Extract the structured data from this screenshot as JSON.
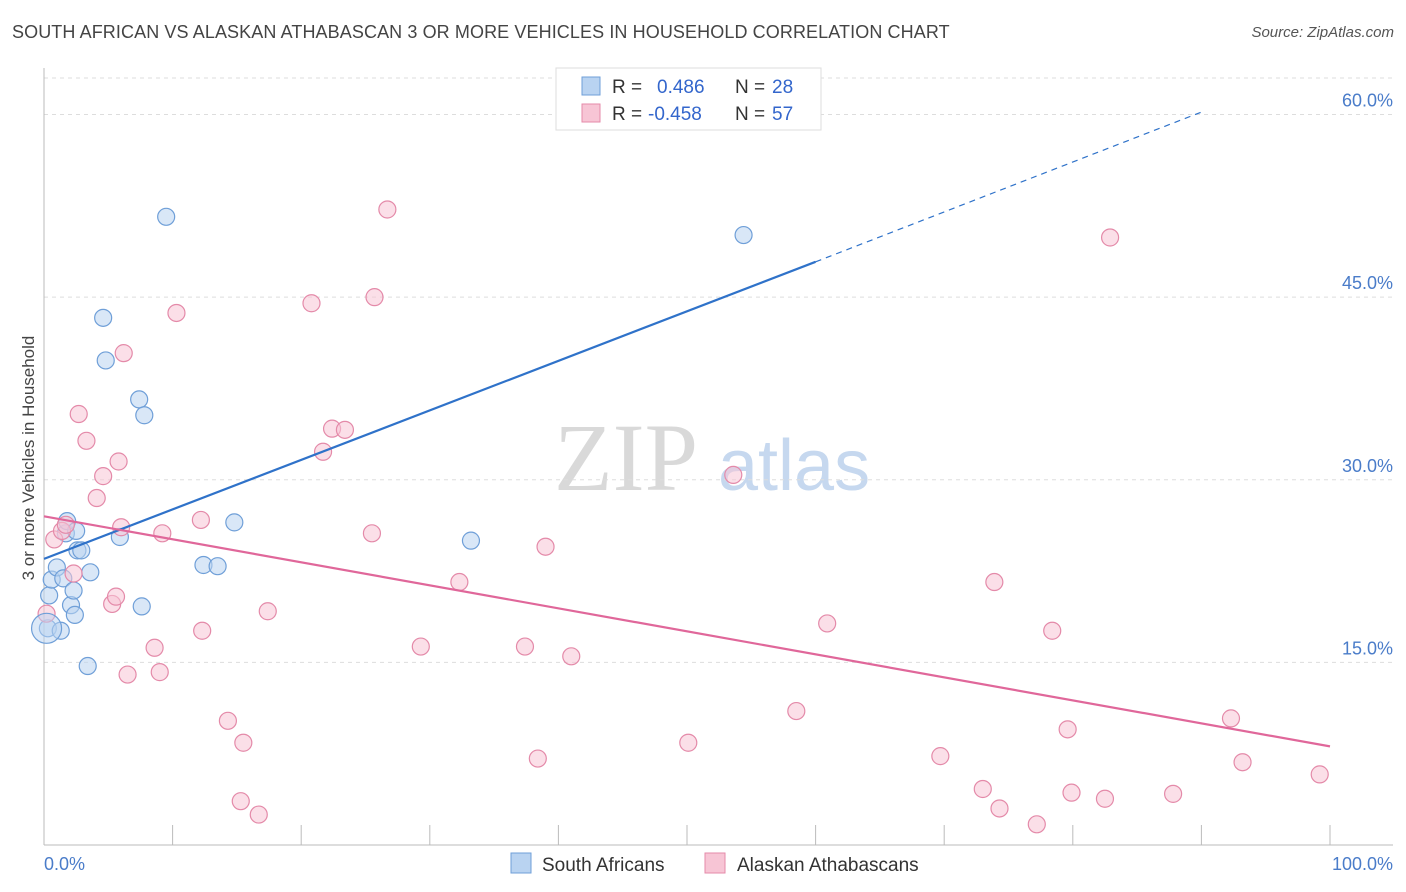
{
  "title": "SOUTH AFRICAN VS ALASKAN ATHABASCAN 3 OR MORE VEHICLES IN HOUSEHOLD CORRELATION CHART",
  "source": "Source: ZipAtlas.com",
  "watermark": {
    "zip": "ZIP",
    "atlas": "atlas"
  },
  "colors": {
    "blue_fill": "#b9d3f1",
    "blue_stroke": "#6f9fd8",
    "blue_line": "#2f72c9",
    "pink_fill": "#f7c5d5",
    "pink_stroke": "#e48aa9",
    "pink_line": "#e0679a"
  },
  "legend_box": {
    "r_label": "R =",
    "n_label": "N =",
    "rows": [
      {
        "r": "0.486",
        "n": "28"
      },
      {
        "r": "-0.458",
        "n": "57"
      }
    ]
  },
  "chart_data": {
    "type": "scatter",
    "title": "SOUTH AFRICAN VS ALASKAN ATHABASCAN 3 OR MORE VEHICLES IN HOUSEHOLD CORRELATION CHART",
    "xlabel": "",
    "ylabel": "3 or more Vehicles in Household",
    "xlim": [
      0,
      100
    ],
    "ylim": [
      0,
      63
    ],
    "x_tick_labels": [
      "0.0%",
      "100.0%"
    ],
    "y_ticks": [
      15,
      30,
      45,
      60
    ],
    "y_tick_labels": [
      "15.0%",
      "30.0%",
      "45.0%",
      "60.0%"
    ],
    "grid": true,
    "legend_placement": "bottom",
    "series": [
      {
        "name": "South Africans",
        "color": "#6f9fd8",
        "points": [
          [
            0.3,
            17.8
          ],
          [
            0.4,
            20.5
          ],
          [
            0.6,
            21.8
          ],
          [
            1.0,
            22.8
          ],
          [
            1.3,
            17.6
          ],
          [
            1.5,
            21.9
          ],
          [
            1.7,
            25.6
          ],
          [
            1.8,
            26.6
          ],
          [
            2.1,
            19.7
          ],
          [
            2.3,
            20.9
          ],
          [
            2.4,
            18.9
          ],
          [
            2.5,
            25.8
          ],
          [
            2.6,
            24.2
          ],
          [
            2.9,
            24.2
          ],
          [
            3.4,
            14.7
          ],
          [
            3.6,
            22.4
          ],
          [
            4.6,
            43.3
          ],
          [
            4.8,
            39.8
          ],
          [
            5.9,
            25.3
          ],
          [
            7.4,
            36.6
          ],
          [
            7.6,
            19.6
          ],
          [
            7.8,
            35.3
          ],
          [
            9.5,
            51.6
          ],
          [
            12.4,
            23.0
          ],
          [
            13.5,
            22.9
          ],
          [
            14.8,
            26.5
          ],
          [
            33.2,
            25.0
          ],
          [
            54.4,
            50.1
          ]
        ],
        "trend": {
          "x0": 0,
          "y0": 23.5,
          "x1": 60,
          "y1": 47.9,
          "dash_x1": 90,
          "dash_y1": 60.2
        }
      },
      {
        "name": "Alaskan Athabascans",
        "color": "#e48aa9",
        "points": [
          [
            0.2,
            19.0
          ],
          [
            0.8,
            25.1
          ],
          [
            1.4,
            25.8
          ],
          [
            1.7,
            26.3
          ],
          [
            2.3,
            22.3
          ],
          [
            2.7,
            35.4
          ],
          [
            3.3,
            33.2
          ],
          [
            4.1,
            28.5
          ],
          [
            4.6,
            30.3
          ],
          [
            5.3,
            19.8
          ],
          [
            5.6,
            20.4
          ],
          [
            5.8,
            31.5
          ],
          [
            6.0,
            26.1
          ],
          [
            6.2,
            40.4
          ],
          [
            6.5,
            14.0
          ],
          [
            8.6,
            16.2
          ],
          [
            9.0,
            14.2
          ],
          [
            9.2,
            25.6
          ],
          [
            10.3,
            43.7
          ],
          [
            12.2,
            26.7
          ],
          [
            12.3,
            17.6
          ],
          [
            14.3,
            10.2
          ],
          [
            15.3,
            3.6
          ],
          [
            15.5,
            8.4
          ],
          [
            16.7,
            2.5
          ],
          [
            17.4,
            19.2
          ],
          [
            20.8,
            44.5
          ],
          [
            21.7,
            32.3
          ],
          [
            22.4,
            34.2
          ],
          [
            23.4,
            34.1
          ],
          [
            25.7,
            45.0
          ],
          [
            25.5,
            25.6
          ],
          [
            26.7,
            52.2
          ],
          [
            29.3,
            16.3
          ],
          [
            32.3,
            21.6
          ],
          [
            37.4,
            16.3
          ],
          [
            38.4,
            7.1
          ],
          [
            39.0,
            24.5
          ],
          [
            41.0,
            15.5
          ],
          [
            50.1,
            8.4
          ],
          [
            53.6,
            30.4
          ],
          [
            58.5,
            11.0
          ],
          [
            60.9,
            18.2
          ],
          [
            69.7,
            7.3
          ],
          [
            73.0,
            4.6
          ],
          [
            73.9,
            21.6
          ],
          [
            74.3,
            3.0
          ],
          [
            77.2,
            1.7
          ],
          [
            78.4,
            17.6
          ],
          [
            79.6,
            9.5
          ],
          [
            79.9,
            4.3
          ],
          [
            82.5,
            3.8
          ],
          [
            82.9,
            49.9
          ],
          [
            87.8,
            4.2
          ],
          [
            92.3,
            10.4
          ],
          [
            93.2,
            6.8
          ],
          [
            99.2,
            5.8
          ]
        ],
        "trend": {
          "x0": 0,
          "y0": 27.0,
          "x1": 100,
          "y1": 8.1
        }
      }
    ]
  }
}
